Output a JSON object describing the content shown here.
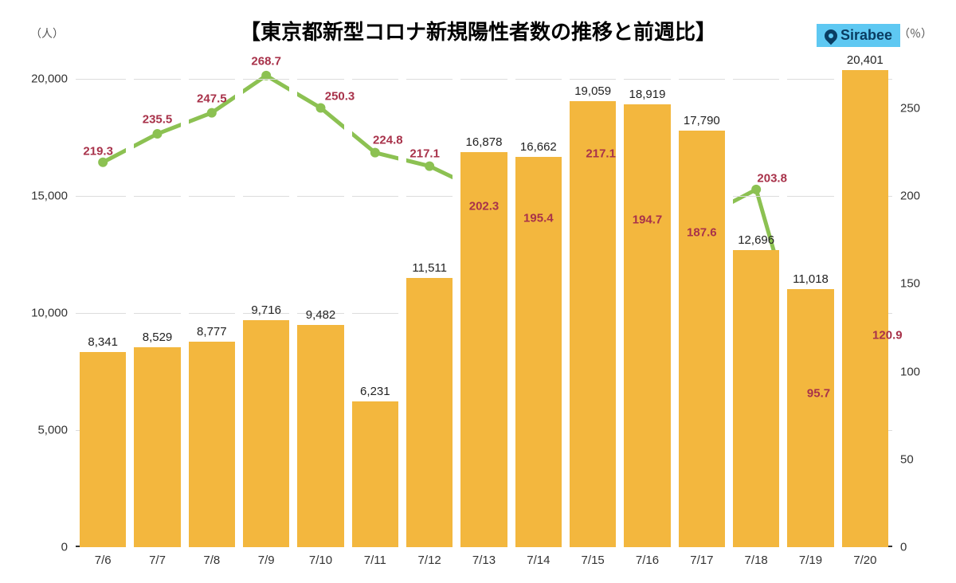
{
  "title": "【東京都新型コロナ新規陽性者数の推移と前週比】",
  "logo_text": "Sirabee",
  "y_left_unit": "（人）",
  "y_right_unit": "（％）",
  "chart": {
    "type": "bar+line",
    "background_color": "#ffffff",
    "grid_color": "#dcdcdc",
    "bar_color": "#f3b73e",
    "line_color": "#8cc152",
    "line_width": 5,
    "marker_color": "#8cc152",
    "marker_radius": 6,
    "bar_label_color": "#222222",
    "line_label_color": "#a8324a",
    "x_tick_color": "#333333",
    "axis_left": {
      "min": 0,
      "max": 21000,
      "ticks": [
        0,
        5000,
        10000,
        15000,
        20000
      ],
      "tick_labels": [
        "0",
        "5,000",
        "10,000",
        "15,000",
        "20,000"
      ]
    },
    "axis_right": {
      "min": 0,
      "max": 280,
      "ticks": [
        0,
        50,
        100,
        150,
        200,
        250
      ],
      "tick_labels": [
        "0",
        "50",
        "100",
        "150",
        "200",
        "250"
      ]
    },
    "categories": [
      "7/6",
      "7/7",
      "7/8",
      "7/9",
      "7/10",
      "7/11",
      "7/12",
      "7/13",
      "7/14",
      "7/15",
      "7/16",
      "7/17",
      "7/18",
      "7/19",
      "7/20"
    ],
    "bars": [
      8341,
      8529,
      8777,
      9716,
      9482,
      6231,
      11511,
      16878,
      16662,
      19059,
      18919,
      17790,
      12696,
      11018,
      20401
    ],
    "bar_labels": [
      "8,341",
      "8,529",
      "8,777",
      "9,716",
      "9,482",
      "6,231",
      "11,511",
      "16,878",
      "16,662",
      "19,059",
      "18,919",
      "17,790",
      "12,696",
      "11,018",
      "20,401"
    ],
    "line": [
      219.3,
      235.5,
      247.5,
      268.7,
      250.3,
      224.8,
      217.1,
      202.3,
      195.4,
      217.1,
      194.7,
      187.6,
      203.8,
      95.7,
      120.9
    ],
    "line_labels": [
      "219.3",
      "235.5",
      "247.5",
      "268.7",
      "250.3",
      "224.8",
      "217.1",
      "202.3",
      "195.4",
      "217.1",
      "194.7",
      "187.6",
      "203.8",
      "95.7",
      "120.9"
    ],
    "bar_width_ratio": 0.86,
    "title_fontsize": 26,
    "label_fontsize": 15,
    "tick_fontsize": 15
  }
}
